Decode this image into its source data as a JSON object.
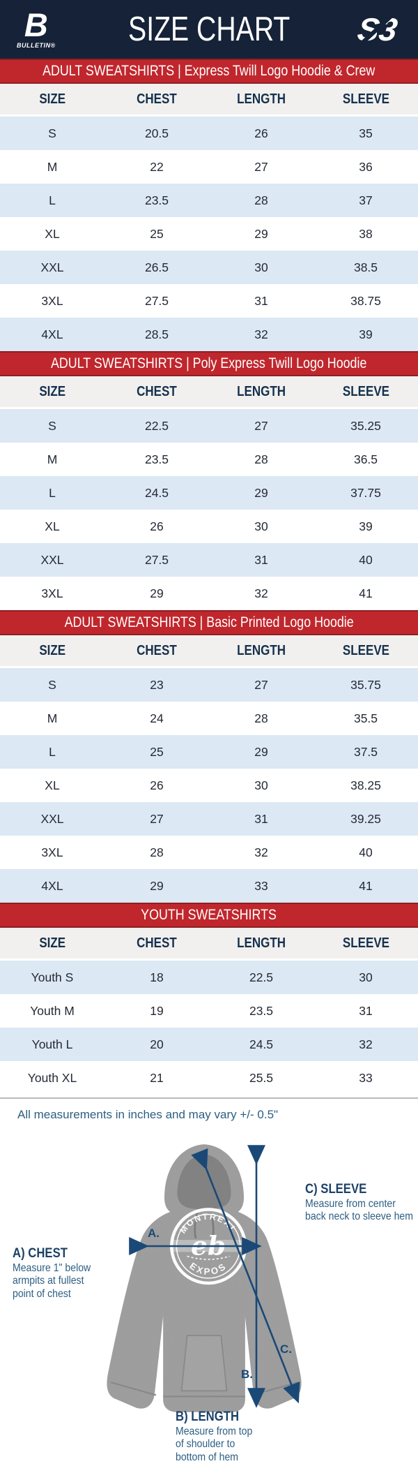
{
  "header": {
    "title": "SIZE CHART",
    "brand_left": {
      "mark": "B",
      "name": "BULLETIN®"
    },
    "brand_right": {
      "mark": "S3"
    }
  },
  "columns": [
    "SIZE",
    "CHEST",
    "LENGTH",
    "SLEEVE"
  ],
  "tables": [
    {
      "banner": "ADULT SWEATSHIRTS | Express Twill Logo Hoodie & Crew",
      "rows": [
        [
          "S",
          "20.5",
          "26",
          "35"
        ],
        [
          "M",
          "22",
          "27",
          "36"
        ],
        [
          "L",
          "23.5",
          "28",
          "37"
        ],
        [
          "XL",
          "25",
          "29",
          "38"
        ],
        [
          "XXL",
          "26.5",
          "30",
          "38.5"
        ],
        [
          "3XL",
          "27.5",
          "31",
          "38.75"
        ],
        [
          "4XL",
          "28.5",
          "32",
          "39"
        ]
      ]
    },
    {
      "banner": "ADULT SWEATSHIRTS | Poly Express Twill Logo Hoodie",
      "rows": [
        [
          "S",
          "22.5",
          "27",
          "35.25"
        ],
        [
          "M",
          "23.5",
          "28",
          "36.5"
        ],
        [
          "L",
          "24.5",
          "29",
          "37.75"
        ],
        [
          "XL",
          "26",
          "30",
          "39"
        ],
        [
          "XXL",
          "27.5",
          "31",
          "40"
        ],
        [
          "3XL",
          "29",
          "32",
          "41"
        ]
      ]
    },
    {
      "banner": "ADULT SWEATSHIRTS | Basic Printed Logo Hoodie",
      "rows": [
        [
          "S",
          "23",
          "27",
          "35.75"
        ],
        [
          "M",
          "24",
          "28",
          "35.5"
        ],
        [
          "L",
          "25",
          "29",
          "37.5"
        ],
        [
          "XL",
          "26",
          "30",
          "38.25"
        ],
        [
          "XXL",
          "27",
          "31",
          "39.25"
        ],
        [
          "3XL",
          "28",
          "32",
          "40"
        ],
        [
          "4XL",
          "29",
          "33",
          "41"
        ]
      ]
    },
    {
      "banner": "YOUTH SWEATSHIRTS",
      "rows": [
        [
          "Youth S",
          "18",
          "22.5",
          "30"
        ],
        [
          "Youth M",
          "19",
          "23.5",
          "31"
        ],
        [
          "Youth L",
          "20",
          "24.5",
          "32"
        ],
        [
          "Youth XL",
          "21",
          "25.5",
          "33"
        ]
      ]
    }
  ],
  "footnote": "All measurements in inches and may vary +/- 0.5\"",
  "diagram": {
    "garment_logo": {
      "top_text": "MONTREAL",
      "bottom_text": "EXPOS",
      "center_mark": "eb"
    },
    "markers": {
      "a": "A.",
      "b": "B.",
      "c": "C."
    },
    "chest": {
      "title": "A) CHEST",
      "line1": "Measure 1\" below",
      "line2": "armpits at fullest",
      "line3": "point of chest"
    },
    "length": {
      "title": "B) LENGTH",
      "line1": "Measure from top",
      "line2": "of shoulder to",
      "line3": "bottom of hem"
    },
    "sleeve": {
      "title": "C) SLEEVE",
      "line1": "Measure from center",
      "line2": "back neck to sleeve hem"
    }
  },
  "colors": {
    "navy": "#152238",
    "red": "#c0272d",
    "row_alt": "#dce8f4",
    "arrow": "#1a4977"
  }
}
